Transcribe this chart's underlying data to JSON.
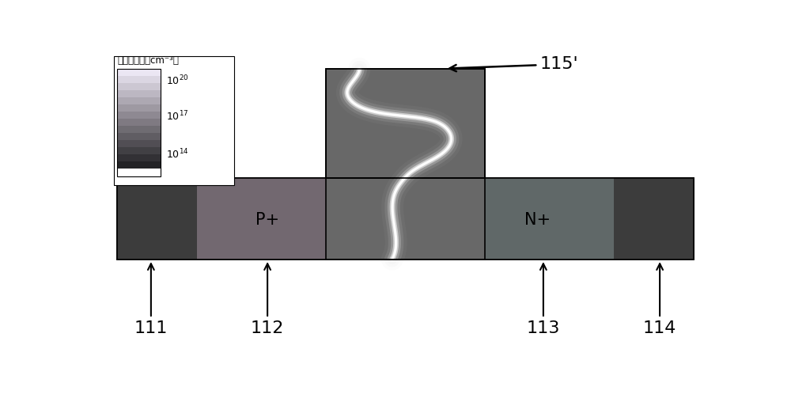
{
  "bg_color": "#ffffff",
  "dark_contact": "#3a3a3a",
  "mid_device": "#6a6a6a",
  "purple_slab": "#7a7080",
  "title_115": "115'",
  "title_111": "111",
  "title_112": "112",
  "title_113": "113",
  "title_114": "114",
  "label_P": "P+",
  "label_N": "N+",
  "colorbar_title": "载流子浓度（cm⁻³）",
  "tick_powers": [
    "20",
    "17",
    "14"
  ],
  "font_size_label": 15,
  "font_size_num": 16
}
